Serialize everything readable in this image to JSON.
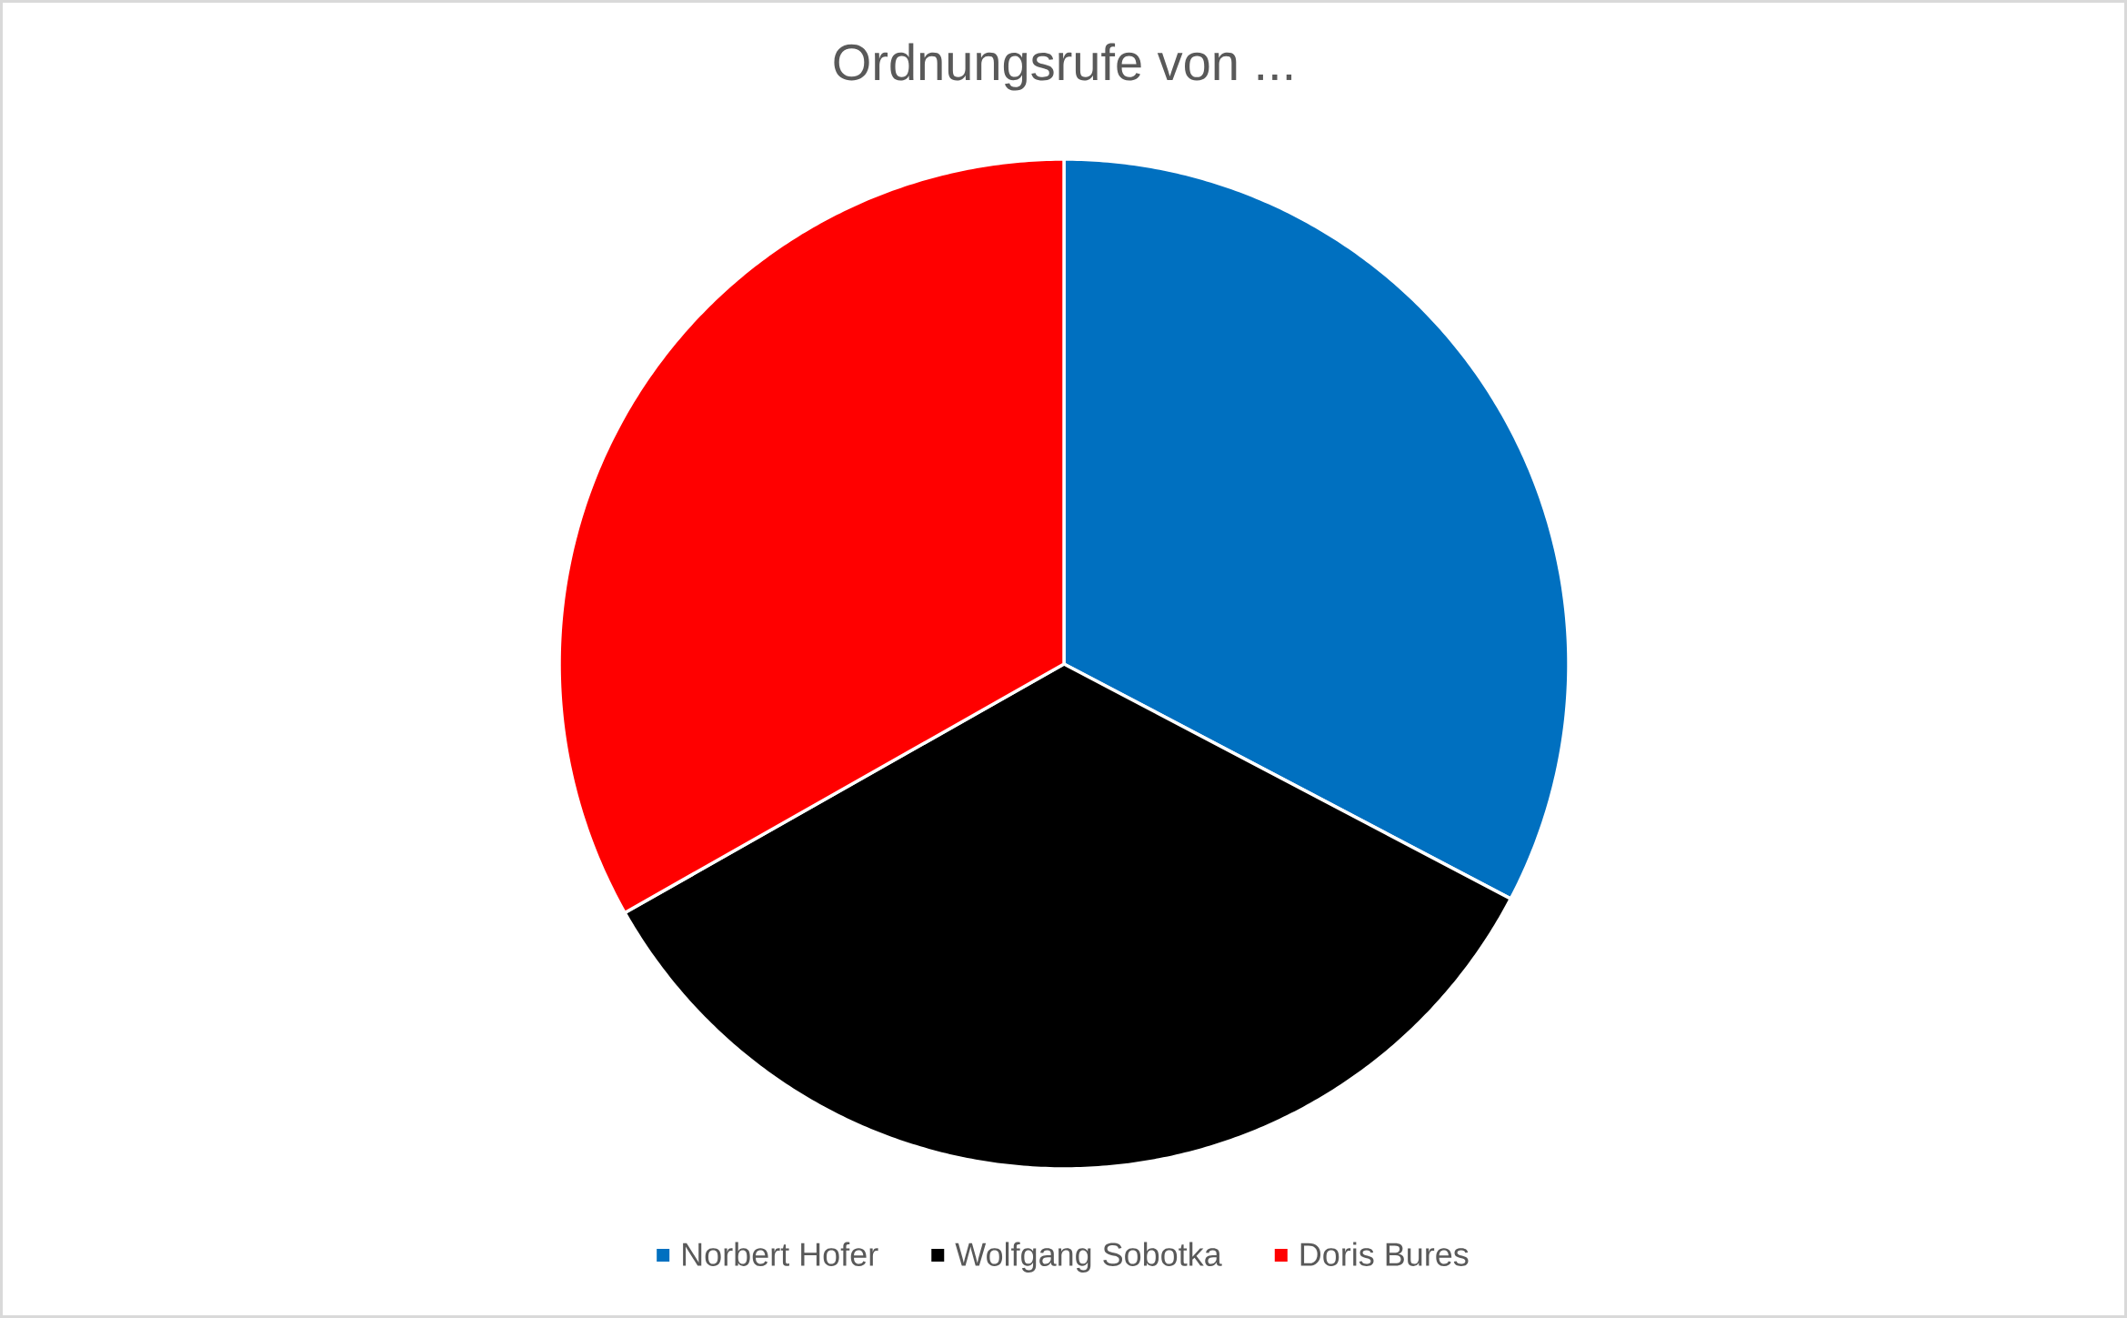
{
  "chart_data": {
    "type": "pie",
    "title": "Ordnungsrufe von ...",
    "categories": [
      "Norbert Hofer",
      "Wolfgang Sobotka",
      "Doris Bures"
    ],
    "values": [
      32.7,
      34.1,
      33.2
    ],
    "colors": [
      "#0070c0",
      "#000000",
      "#ff0000"
    ],
    "legend": "bottom"
  }
}
